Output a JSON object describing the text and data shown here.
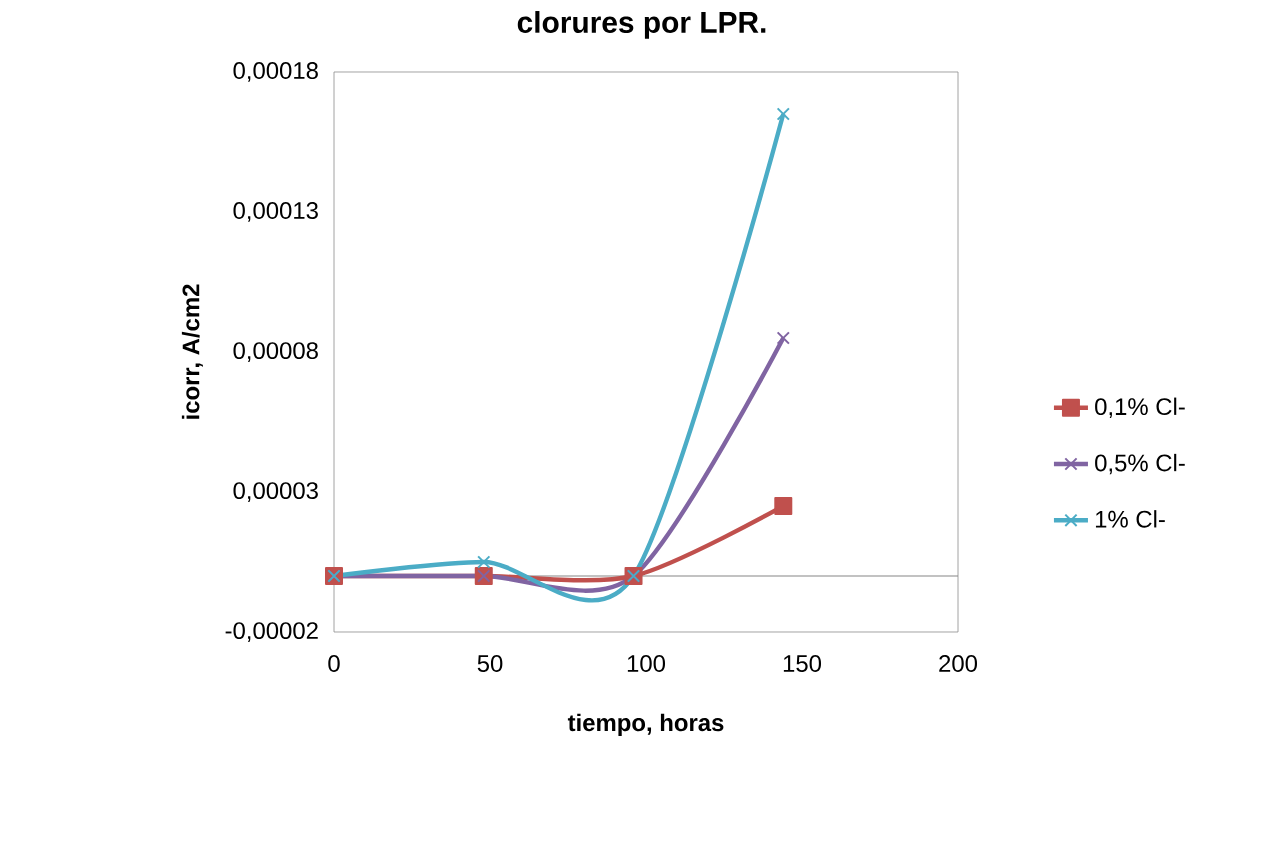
{
  "chart_data": {
    "type": "line",
    "title": "clorures por LPR.",
    "xlabel": "tiempo, horas",
    "ylabel": "icorr, A/cm2",
    "x": [
      0,
      48,
      96,
      144
    ],
    "series": [
      {
        "name": "0,1% Cl-",
        "color": "#c0504d",
        "marker": "square",
        "values": [
          0,
          0,
          0,
          2.5e-05
        ]
      },
      {
        "name": "0,5% Cl-",
        "color": "#8064a2",
        "marker": "cross",
        "values": [
          0,
          0,
          0,
          8.5e-05
        ]
      },
      {
        "name": "1% Cl-",
        "color": "#4bacc6",
        "marker": "cross",
        "values": [
          0,
          5e-06,
          0,
          0.000165
        ]
      }
    ],
    "xlim": [
      0,
      200
    ],
    "xticks": [
      0,
      50,
      100,
      150,
      200
    ],
    "ylim": [
      -2e-05,
      0.00018
    ],
    "yticks": [
      {
        "value": -2e-05,
        "label": "-0,00002"
      },
      {
        "value": 3e-05,
        "label": "0,00003"
      },
      {
        "value": 8e-05,
        "label": "0,00008"
      },
      {
        "value": 0.00013,
        "label": "0,00013"
      },
      {
        "value": 0.00018,
        "label": "0,00018"
      }
    ],
    "ref_lines": [
      {
        "axis": "y",
        "value": 0,
        "color": "#868686"
      }
    ],
    "legend": "right",
    "grid": false
  }
}
